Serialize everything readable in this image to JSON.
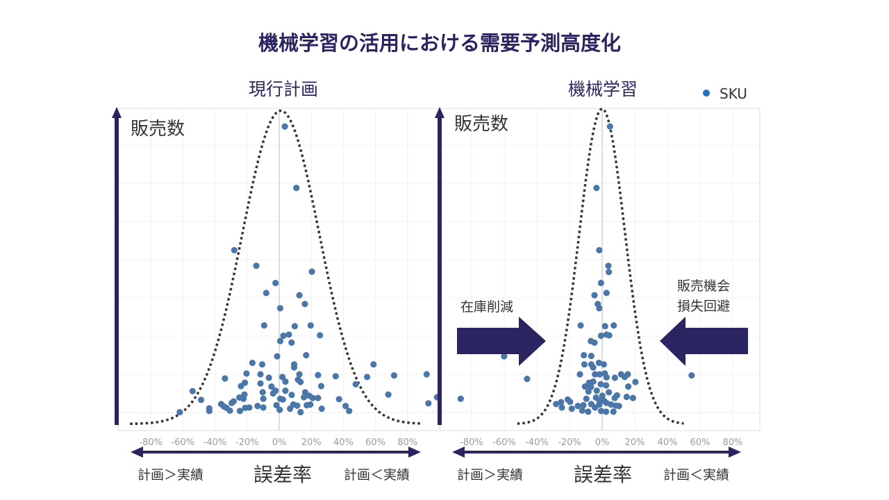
{
  "title": "機械学習の活用における需要予測高度化",
  "legend": {
    "label": "SKU",
    "color": "#1f6fc0"
  },
  "colors": {
    "navy": "#2a2560",
    "point": "#4a76a8",
    "curve": "#333333"
  },
  "annotations": {
    "left_arrow_label": "在庫削減",
    "right_arrow_label_1": "販売機会",
    "right_arrow_label_2": "損失回避"
  },
  "chart_data": [
    {
      "type": "scatter",
      "title": "現行計画",
      "ylabel": "販売数",
      "xlabel": "誤差率",
      "xlabel_left": "計画＞実績",
      "xlabel_right": "計画＜実績",
      "xticks": [
        "-80%",
        "-60%",
        "-40%",
        "-20%",
        "0%",
        "20%",
        "40%",
        "60%",
        "80%"
      ],
      "xtick_values": [
        -80,
        -60,
        -40,
        -20,
        0,
        20,
        40,
        60,
        80
      ],
      "xlim": [
        -100,
        100
      ],
      "ylim": [
        0,
        8
      ],
      "grid": true,
      "curve": {
        "mean": 1,
        "sigma": 24,
        "peak": 7.9,
        "base": -0.3,
        "range": [
          -93,
          88
        ]
      },
      "points": [
        [
          3.5,
          7.49
        ],
        [
          10.7,
          5.88
        ],
        [
          -28,
          4.25
        ],
        [
          -14.3,
          3.84
        ],
        [
          20.4,
          3.69
        ],
        [
          -2.3,
          3.39
        ],
        [
          -8.1,
          3.13
        ],
        [
          12.6,
          3.07
        ],
        [
          16,
          2.84
        ],
        [
          0.6,
          2.73
        ],
        [
          -9.4,
          2.28
        ],
        [
          9.7,
          2.26
        ],
        [
          19.6,
          2.28
        ],
        [
          25.4,
          2.02
        ],
        [
          2.6,
          2.01
        ],
        [
          6,
          2.04
        ],
        [
          0.6,
          1.87
        ],
        [
          7.7,
          1.83
        ],
        [
          16.8,
          1.5
        ],
        [
          -1.3,
          1.47
        ],
        [
          -16.7,
          1.3
        ],
        [
          -10.6,
          1.26
        ],
        [
          9.3,
          1.26
        ],
        [
          9.3,
          1.18
        ],
        [
          58.8,
          1.26
        ],
        [
          -20.4,
          1.02
        ],
        [
          -11.7,
          1.0
        ],
        [
          12.6,
          1.0
        ],
        [
          24.2,
          0.98
        ],
        [
          91.9,
          1.0
        ],
        [
          -33.8,
          0.89
        ],
        [
          -6.4,
          0.91
        ],
        [
          2,
          0.93
        ],
        [
          35.2,
          0.95
        ],
        [
          54.8,
          0.93
        ],
        [
          71.6,
          0.97
        ],
        [
          3.9,
          0.81
        ],
        [
          11.7,
          0.86
        ],
        [
          13.3,
          0.8
        ],
        [
          -21.4,
          0.78
        ],
        [
          -23.8,
          0.69
        ],
        [
          -11.7,
          0.76
        ],
        [
          -4.8,
          0.68
        ],
        [
          26.2,
          0.69
        ],
        [
          47.7,
          0.74
        ],
        [
          -54,
          0.56
        ],
        [
          -10.3,
          0.53
        ],
        [
          -2.3,
          0.57
        ],
        [
          -3.8,
          0.5
        ],
        [
          3.9,
          0.57
        ],
        [
          -21.7,
          0.47
        ],
        [
          7.8,
          0.46
        ],
        [
          16.2,
          0.53
        ],
        [
          68,
          0.47
        ],
        [
          -24.8,
          0.39
        ],
        [
          -22.3,
          0.36
        ],
        [
          -9.9,
          0.36
        ],
        [
          0.6,
          0.36
        ],
        [
          2.3,
          0.34
        ],
        [
          15.4,
          0.4
        ],
        [
          18.7,
          0.44
        ],
        [
          20.9,
          0.38
        ],
        [
          24.2,
          0.38
        ],
        [
          -48.7,
          0.33
        ],
        [
          37.3,
          0.35
        ],
        [
          98.4,
          0.4
        ],
        [
          -28.4,
          0.29
        ],
        [
          -29.6,
          0.25
        ],
        [
          -36.2,
          0.22
        ],
        [
          -34.5,
          0.16
        ],
        [
          -32.8,
          0.12
        ],
        [
          -30.7,
          0.05
        ],
        [
          -43.6,
          0.11
        ],
        [
          -43.6,
          0.04
        ],
        [
          -62,
          0.01
        ],
        [
          -24.5,
          0.04
        ],
        [
          -21.2,
          0.12
        ],
        [
          -18.6,
          0.13
        ],
        [
          -13.5,
          0.17
        ],
        [
          -9.9,
          0.13
        ],
        [
          -1.7,
          0.19
        ],
        [
          0.3,
          0.07
        ],
        [
          6.8,
          0.1
        ],
        [
          8.8,
          0.21
        ],
        [
          11.2,
          0.18
        ],
        [
          13.3,
          0.01
        ],
        [
          17.2,
          0.19
        ],
        [
          19.4,
          0.21
        ],
        [
          26.5,
          0.1
        ],
        [
          41.4,
          0.17
        ],
        [
          43.6,
          0.04
        ],
        [
          93,
          0.24
        ]
      ]
    },
    {
      "type": "scatter",
      "title": "機械学習",
      "ylabel": "販売数",
      "xlabel": "誤差率",
      "xlabel_left": "計画＞実績",
      "xlabel_right": "計画＜実績",
      "xticks": [
        "-80%",
        "-60%",
        "-40%",
        "-20%",
        "0%",
        "20%",
        "40%",
        "60%",
        "80%"
      ],
      "xtick_values": [
        -80,
        -60,
        -40,
        -20,
        0,
        20,
        40,
        60,
        80
      ],
      "xlim": [
        -100,
        100
      ],
      "ylim": [
        0,
        8
      ],
      "grid": true,
      "curve": {
        "mean": 0,
        "sigma": 14,
        "peak": 7.95,
        "base": -0.3,
        "range": [
          -52,
          50
        ]
      },
      "points": [
        [
          4.8,
          7.49
        ],
        [
          -3.5,
          5.88
        ],
        [
          -1.8,
          4.25
        ],
        [
          3.8,
          3.84
        ],
        [
          4.1,
          3.68
        ],
        [
          -0.7,
          3.39
        ],
        [
          -4.7,
          3.07
        ],
        [
          2.7,
          3.13
        ],
        [
          -2.7,
          2.84
        ],
        [
          -1.8,
          2.73
        ],
        [
          -13.2,
          2.28
        ],
        [
          1.8,
          2.26
        ],
        [
          7.1,
          2.28
        ],
        [
          -0.7,
          2.01
        ],
        [
          2.7,
          2.04
        ],
        [
          4.3,
          2.02
        ],
        [
          -6.9,
          1.87
        ],
        [
          -4.7,
          1.83
        ],
        [
          -60.1,
          1.47
        ],
        [
          -11.2,
          1.5
        ],
        [
          -6.7,
          1.48
        ],
        [
          -10.9,
          1.26
        ],
        [
          -6.7,
          1.26
        ],
        [
          -5.5,
          1.18
        ],
        [
          -2,
          1.3
        ],
        [
          1,
          1.26
        ],
        [
          -46,
          0.88
        ],
        [
          54.8,
          0.97
        ],
        [
          -13.6,
          1.0
        ],
        [
          -4.4,
          1.0
        ],
        [
          -1.6,
          1.0
        ],
        [
          1.6,
          1.02
        ],
        [
          2.7,
          0.92
        ],
        [
          7.8,
          0.91
        ],
        [
          11.6,
          1.0
        ],
        [
          13.8,
          0.93
        ],
        [
          15.7,
          1.0
        ],
        [
          20.4,
          0.8
        ],
        [
          16,
          0.68
        ],
        [
          -8,
          0.78
        ],
        [
          -5.5,
          0.81
        ],
        [
          -10.5,
          0.68
        ],
        [
          -6.9,
          0.67
        ],
        [
          -0.9,
          0.74
        ],
        [
          2.4,
          0.71
        ],
        [
          -8.4,
          0.55
        ],
        [
          -3.3,
          0.57
        ],
        [
          4.1,
          0.53
        ],
        [
          9.1,
          0.45
        ],
        [
          7.7,
          0.38
        ],
        [
          15,
          0.41
        ],
        [
          18.9,
          0.38
        ],
        [
          -9.7,
          0.36
        ],
        [
          -3.8,
          0.39
        ],
        [
          0.1,
          0.44
        ],
        [
          -86.7,
          0.36
        ],
        [
          -21.1,
          0.34
        ],
        [
          -19.7,
          0.28
        ],
        [
          -25.2,
          0.27
        ],
        [
          -28.2,
          0.22
        ],
        [
          -24.7,
          0.13
        ],
        [
          -18.6,
          0.1
        ],
        [
          -14.9,
          0.17
        ],
        [
          -11.5,
          0.19
        ],
        [
          -12.2,
          0.05
        ],
        [
          -8.6,
          0.02
        ],
        [
          -6.7,
          0.22
        ],
        [
          -4.4,
          0.13
        ],
        [
          -1.8,
          0.21
        ],
        [
          -0.7,
          0.04
        ],
        [
          2.4,
          0.02
        ],
        [
          2.7,
          0.25
        ],
        [
          5.5,
          0.21
        ],
        [
          8.4,
          0.18
        ],
        [
          10.3,
          0.17
        ],
        [
          6.9,
          0.02
        ],
        [
          -1.6,
          0.31
        ],
        [
          1.3,
          0.3
        ]
      ]
    }
  ]
}
